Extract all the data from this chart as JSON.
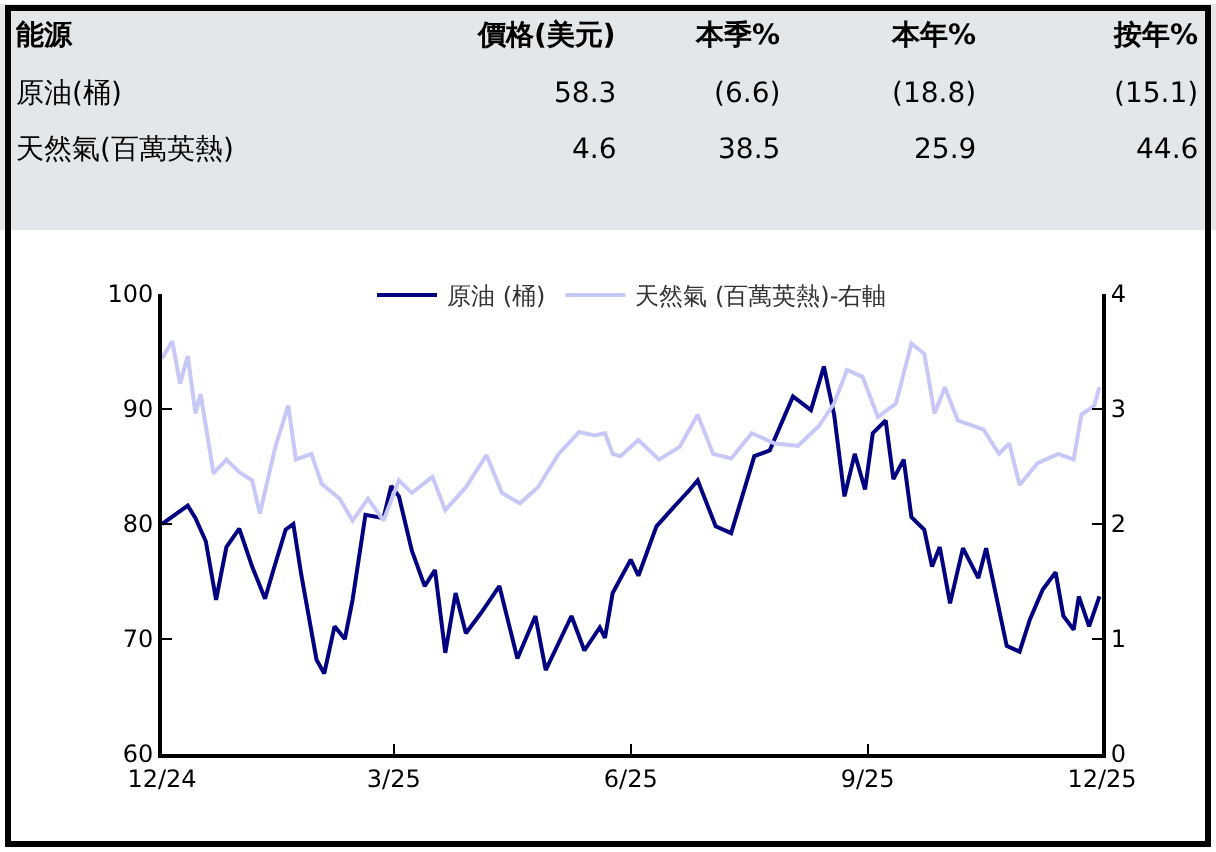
{
  "chart_data": {
    "type": "line",
    "annotations": [
      "能源",
      "價格(美元)",
      "本季%",
      "本年%",
      "按年%",
      "原油(桶)",
      "58.3",
      "(6.6)",
      "(18.8)",
      "(15.1)",
      "天然氣(百萬英熱)",
      "4.6",
      "38.5",
      "25.9",
      "44.6"
    ],
    "series": [
      {
        "name": "原油 (桶)",
        "color": "#000080",
        "x": [
          "2024-12-01",
          "2024-12-11",
          "2024-12-14",
          "2024-12-18",
          "2024-12-22",
          "2024-12-26",
          "2024-12-31",
          "2025-01-05",
          "2025-01-10",
          "2025-01-13",
          "2025-01-18",
          "2025-01-21",
          "2025-01-24",
          "2025-01-30",
          "2025-02-02",
          "2025-02-06",
          "2025-02-10",
          "2025-02-13",
          "2025-02-18",
          "2025-02-25",
          "2025-02-28",
          "2025-03-03",
          "2025-03-08",
          "2025-03-13",
          "2025-03-17",
          "2025-03-21",
          "2025-03-25",
          "2025-03-29",
          "2025-04-04",
          "2025-04-11",
          "2025-04-18",
          "2025-04-25",
          "2025-04-29",
          "2025-05-09",
          "2025-05-14",
          "2025-05-20",
          "2025-05-22",
          "2025-05-25",
          "2025-06-01",
          "2025-06-04",
          "2025-06-11",
          "2025-06-17",
          "2025-06-24",
          "2025-06-27",
          "2025-07-04",
          "2025-07-10",
          "2025-07-19",
          "2025-07-25",
          "2025-08-03",
          "2025-08-10",
          "2025-08-15",
          "2025-08-19",
          "2025-08-23",
          "2025-08-27",
          "2025-08-31",
          "2025-09-03",
          "2025-09-08",
          "2025-09-11",
          "2025-09-15",
          "2025-09-18",
          "2025-09-23",
          "2025-09-26",
          "2025-09-29",
          "2025-10-03",
          "2025-10-08",
          "2025-10-14",
          "2025-10-17",
          "2025-10-25",
          "2025-10-30",
          "2025-11-03",
          "2025-11-08",
          "2025-11-13",
          "2025-11-16",
          "2025-11-20",
          "2025-11-22",
          "2025-11-26",
          "2025-11-30"
        ],
        "values": [
          80,
          81.6,
          80.5,
          78.5,
          73.4,
          78,
          79.6,
          76.3,
          73.5,
          75.8,
          79.5,
          80,
          75.7,
          68.2,
          67,
          71.1,
          70,
          73.4,
          80.8,
          80.5,
          83.3,
          82.4,
          77.7,
          74.6,
          76,
          68.8,
          74,
          70.5,
          72.3,
          74.6,
          68.3,
          72,
          67.3,
          72,
          69,
          71,
          70.1,
          74,
          76.9,
          75.5,
          79.8,
          81.3,
          83,
          83.8,
          79.8,
          79.2,
          85.9,
          86.4,
          91.1,
          89.9,
          93.7,
          89.5,
          82.4,
          86.1,
          83,
          87.9,
          89,
          83.9,
          85.6,
          80.6,
          79.5,
          76.3,
          78,
          73.1,
          77.9,
          75.3,
          77.9,
          69.4,
          68.9,
          71.7,
          74.3,
          75.8,
          72,
          70.8,
          73.7,
          71.1,
          73.7
        ]
      },
      {
        "name": "天然氣 (百萬英熱)-右軸",
        "color": "#c8c8f8",
        "axis": "y2",
        "x": [
          "2024-12-01",
          "2024-12-05",
          "2024-12-08",
          "2024-12-11",
          "2024-12-14",
          "2024-12-16",
          "2024-12-21",
          "2024-12-26",
          "2024-12-31",
          "2025-01-05",
          "2025-01-08",
          "2025-01-14",
          "2025-01-19",
          "2025-01-22",
          "2025-01-28",
          "2025-02-01",
          "2025-02-08",
          "2025-02-13",
          "2025-02-19",
          "2025-02-25",
          "2025-03-03",
          "2025-03-08",
          "2025-03-16",
          "2025-03-21",
          "2025-03-29",
          "2025-04-06",
          "2025-04-12",
          "2025-04-19",
          "2025-04-26",
          "2025-05-04",
          "2025-05-12",
          "2025-05-18",
          "2025-05-22",
          "2025-05-25",
          "2025-05-28",
          "2025-06-04",
          "2025-06-12",
          "2025-06-20",
          "2025-06-27",
          "2025-07-03",
          "2025-07-10",
          "2025-07-18",
          "2025-07-27",
          "2025-08-05",
          "2025-08-13",
          "2025-08-19",
          "2025-08-24",
          "2025-08-30",
          "2025-09-05",
          "2025-09-12",
          "2025-09-18",
          "2025-09-23",
          "2025-09-27",
          "2025-10-01",
          "2025-10-06",
          "2025-10-16",
          "2025-10-22",
          "2025-10-26",
          "2025-10-30",
          "2025-11-06",
          "2025-11-14",
          "2025-11-20",
          "2025-11-23",
          "2025-11-28",
          "2025-11-30"
        ],
        "values": [
          3.44,
          3.59,
          3.22,
          3.46,
          2.96,
          3.13,
          2.44,
          2.56,
          2.45,
          2.38,
          2.09,
          2.67,
          3.03,
          2.56,
          2.61,
          2.35,
          2.22,
          2.03,
          2.22,
          2.03,
          2.38,
          2.27,
          2.41,
          2.12,
          2.32,
          2.6,
          2.27,
          2.18,
          2.32,
          2.61,
          2.8,
          2.77,
          2.79,
          2.61,
          2.59,
          2.73,
          2.56,
          2.67,
          2.95,
          2.61,
          2.57,
          2.79,
          2.7,
          2.68,
          2.85,
          3.05,
          3.34,
          3.28,
          2.93,
          3.05,
          3.57,
          3.48,
          2.96,
          3.19,
          2.9,
          2.82,
          2.61,
          2.7,
          2.34,
          2.53,
          2.61,
          2.56,
          2.95,
          3.03,
          3.19
        ]
      }
    ],
    "xlim": [
      "2024-12-01",
      "2025-12-01"
    ],
    "xticks": [
      {
        "value": "2024-12-01",
        "label": "12/24"
      },
      {
        "value": "2025-03-01",
        "label": "3/25"
      },
      {
        "value": "2025-06-01",
        "label": "6/25"
      },
      {
        "value": "2025-09-01",
        "label": "9/25"
      },
      {
        "value": "2025-12-01",
        "label": "12/25"
      }
    ],
    "ylim": [
      60,
      100
    ],
    "yticks": [
      60,
      70,
      80,
      90,
      100
    ],
    "y2lim": [
      0,
      4
    ],
    "y2ticks": [
      0,
      1,
      2,
      3,
      4
    ],
    "legend": "top",
    "marker": "none",
    "line_style": "solid"
  }
}
